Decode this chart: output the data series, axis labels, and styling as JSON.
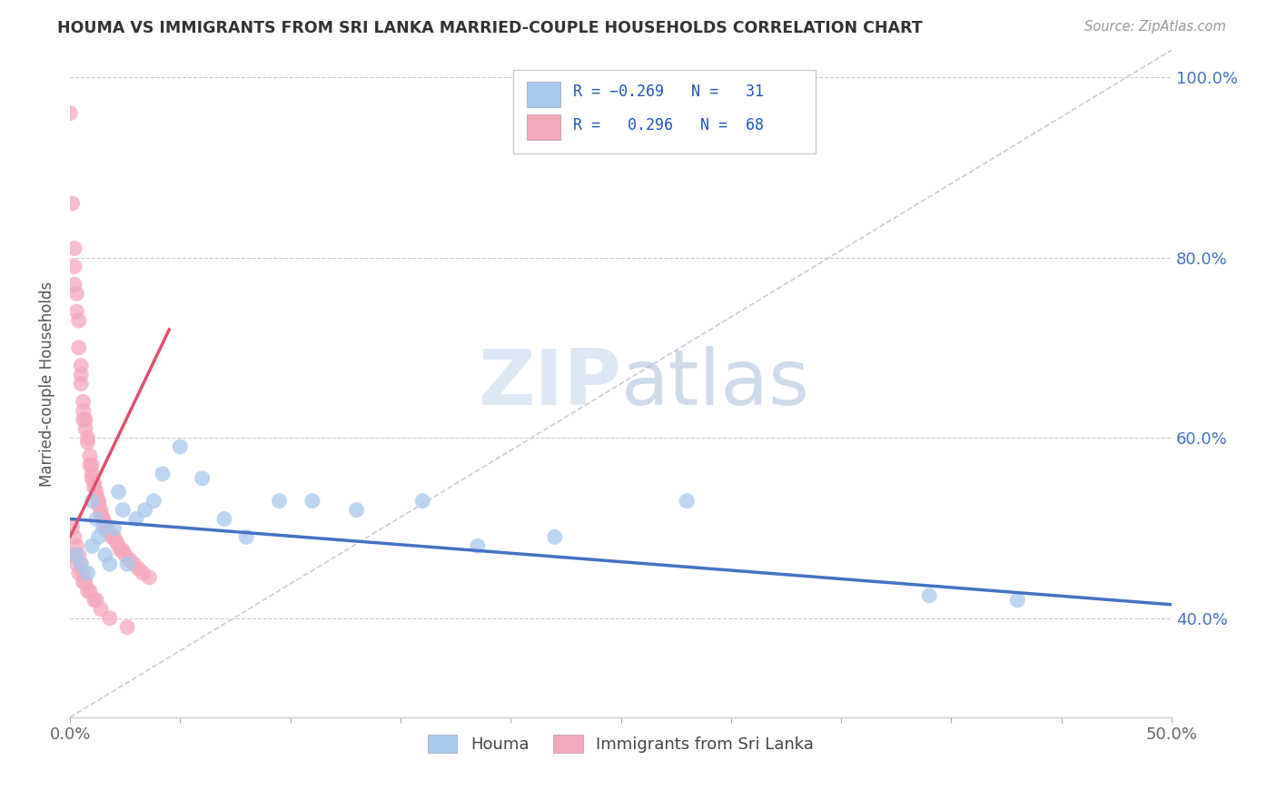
{
  "title": "HOUMA VS IMMIGRANTS FROM SRI LANKA MARRIED-COUPLE HOUSEHOLDS CORRELATION CHART",
  "source": "Source: ZipAtlas.com",
  "ylabel_label": "Married-couple Households",
  "x_min": 0.0,
  "x_max": 0.5,
  "y_min": 0.29,
  "y_max": 1.03,
  "x_ticks": [
    0.0,
    0.05,
    0.1,
    0.15,
    0.2,
    0.25,
    0.3,
    0.35,
    0.4,
    0.45,
    0.5
  ],
  "x_tick_labels": [
    "0.0%",
    "",
    "",
    "",
    "",
    "",
    "",
    "",
    "",
    "",
    "50.0%"
  ],
  "y_ticks": [
    0.4,
    0.6,
    0.8,
    1.0
  ],
  "y_tick_labels": [
    "40.0%",
    "60.0%",
    "80.0%",
    "100.0%"
  ],
  "color_blue": "#A8C8EC",
  "color_pink": "#F4A8BB",
  "line_color_blue": "#4472C4",
  "line_color_pink": "#E05070",
  "diagonal_color": "#D0C8D8",
  "blue_scatter_x": [
    0.003,
    0.005,
    0.008,
    0.01,
    0.01,
    0.012,
    0.013,
    0.015,
    0.016,
    0.018,
    0.02,
    0.022,
    0.024,
    0.026,
    0.03,
    0.034,
    0.038,
    0.042,
    0.05,
    0.06,
    0.07,
    0.08,
    0.095,
    0.11,
    0.13,
    0.16,
    0.185,
    0.22,
    0.28,
    0.39,
    0.43
  ],
  "blue_scatter_y": [
    0.47,
    0.46,
    0.45,
    0.53,
    0.48,
    0.51,
    0.49,
    0.5,
    0.47,
    0.46,
    0.5,
    0.54,
    0.52,
    0.46,
    0.51,
    0.52,
    0.53,
    0.56,
    0.59,
    0.555,
    0.51,
    0.49,
    0.53,
    0.53,
    0.52,
    0.53,
    0.48,
    0.49,
    0.53,
    0.425,
    0.42
  ],
  "pink_scatter_x": [
    0.0,
    0.001,
    0.002,
    0.002,
    0.002,
    0.003,
    0.003,
    0.004,
    0.004,
    0.005,
    0.005,
    0.005,
    0.006,
    0.006,
    0.006,
    0.007,
    0.007,
    0.008,
    0.008,
    0.009,
    0.009,
    0.01,
    0.01,
    0.01,
    0.011,
    0.011,
    0.012,
    0.012,
    0.013,
    0.013,
    0.014,
    0.014,
    0.015,
    0.015,
    0.016,
    0.016,
    0.017,
    0.018,
    0.019,
    0.02,
    0.021,
    0.022,
    0.023,
    0.024,
    0.025,
    0.027,
    0.029,
    0.031,
    0.033,
    0.036,
    0.001,
    0.002,
    0.003,
    0.004,
    0.005,
    0.006,
    0.007,
    0.009,
    0.011,
    0.014,
    0.002,
    0.003,
    0.004,
    0.006,
    0.008,
    0.012,
    0.018,
    0.026
  ],
  "pink_scatter_y": [
    0.96,
    0.86,
    0.81,
    0.79,
    0.77,
    0.76,
    0.74,
    0.73,
    0.7,
    0.68,
    0.67,
    0.66,
    0.64,
    0.63,
    0.62,
    0.62,
    0.61,
    0.6,
    0.595,
    0.58,
    0.57,
    0.57,
    0.56,
    0.555,
    0.55,
    0.545,
    0.54,
    0.535,
    0.53,
    0.525,
    0.52,
    0.515,
    0.51,
    0.51,
    0.505,
    0.5,
    0.5,
    0.495,
    0.49,
    0.49,
    0.485,
    0.48,
    0.475,
    0.475,
    0.47,
    0.465,
    0.46,
    0.455,
    0.45,
    0.445,
    0.5,
    0.49,
    0.48,
    0.47,
    0.46,
    0.45,
    0.44,
    0.43,
    0.42,
    0.41,
    0.47,
    0.46,
    0.45,
    0.44,
    0.43,
    0.42,
    0.4,
    0.39
  ],
  "blue_line_x": [
    0.0,
    0.5
  ],
  "blue_line_y": [
    0.51,
    0.415
  ],
  "pink_line_x": [
    0.0,
    0.045
  ],
  "pink_line_y": [
    0.49,
    0.72
  ],
  "diag_line_x": [
    0.0,
    0.5
  ],
  "diag_line_y": [
    0.29,
    1.03
  ]
}
